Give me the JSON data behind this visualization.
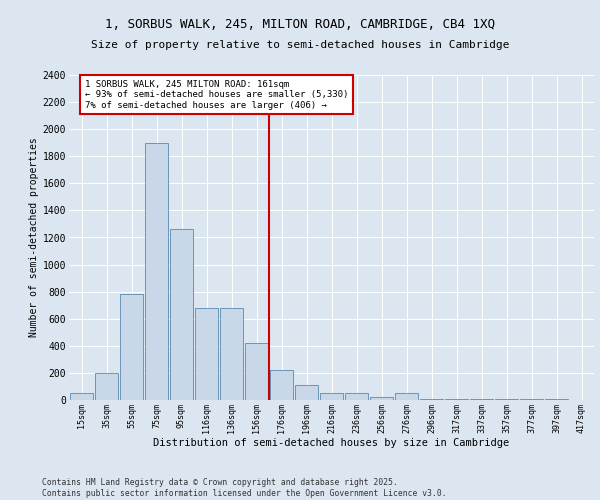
{
  "title_line1": "1, SORBUS WALK, 245, MILTON ROAD, CAMBRIDGE, CB4 1XQ",
  "title_line2": "Size of property relative to semi-detached houses in Cambridge",
  "xlabel": "Distribution of semi-detached houses by size in Cambridge",
  "ylabel": "Number of semi-detached properties",
  "footer_line1": "Contains HM Land Registry data © Crown copyright and database right 2025.",
  "footer_line2": "Contains public sector information licensed under the Open Government Licence v3.0.",
  "annotation_line1": "1 SORBUS WALK, 245 MILTON ROAD: 161sqm",
  "annotation_line2": "← 93% of semi-detached houses are smaller (5,330)",
  "annotation_line3": "7% of semi-detached houses are larger (406) →",
  "property_size": 161,
  "bar_color": "#c8d8e8",
  "bar_edge_color": "#5a8ab0",
  "vline_color": "#cc0000",
  "background_color": "#dce6f0",
  "plot_background_color": "#dce6f0",
  "annotation_box_color": "#ffffff",
  "annotation_border_color": "#cc0000",
  "categories": [
    "15sqm",
    "35sqm",
    "55sqm",
    "75sqm",
    "95sqm",
    "116sqm",
    "136sqm",
    "156sqm",
    "176sqm",
    "196sqm",
    "216sqm",
    "236sqm",
    "256sqm",
    "276sqm",
    "296sqm",
    "317sqm",
    "337sqm",
    "357sqm",
    "377sqm",
    "397sqm",
    "417sqm"
  ],
  "values": [
    50,
    200,
    780,
    1900,
    1260,
    680,
    680,
    420,
    220,
    110,
    50,
    55,
    20,
    55,
    10,
    10,
    10,
    5,
    5,
    5,
    3
  ],
  "ylim": [
    0,
    2400
  ],
  "yticks": [
    0,
    200,
    400,
    600,
    800,
    1000,
    1200,
    1400,
    1600,
    1800,
    2000,
    2200,
    2400
  ]
}
